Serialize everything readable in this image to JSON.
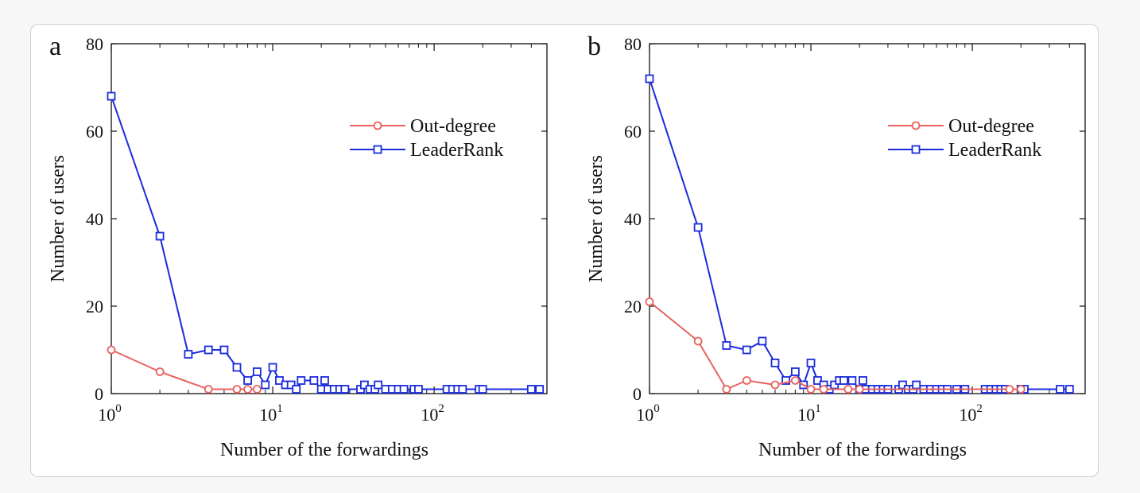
{
  "chart_data": [
    {
      "type": "line",
      "panel_label": "a",
      "xlabel": "Number of the forwardings",
      "ylabel": "Number of users",
      "xscale": "log",
      "xlim": [
        1,
        500
      ],
      "ylim": [
        0,
        80
      ],
      "yticks": [
        0,
        20,
        40,
        60,
        80
      ],
      "xticks": [
        {
          "value": 1,
          "base": "10",
          "exp": "0"
        },
        {
          "value": 10,
          "base": "10",
          "exp": "1"
        },
        {
          "value": 100,
          "base": "10",
          "exp": "2"
        }
      ],
      "legend_position": "top-right",
      "grid": false,
      "series": [
        {
          "name": "Out-degree",
          "color": "#e8625e",
          "marker": "circle",
          "x": [
            1,
            2,
            4,
            6,
            7,
            8
          ],
          "y": [
            10,
            5,
            1,
            1,
            1,
            1
          ]
        },
        {
          "name": "LeaderRank",
          "color": "#1a2bdc",
          "marker": "square",
          "x": [
            1,
            2,
            3,
            4,
            5,
            6,
            7,
            8,
            9,
            10,
            11,
            12,
            13,
            14,
            15,
            18,
            20,
            21,
            22,
            24,
            26,
            28,
            35,
            37,
            40,
            43,
            45,
            50,
            55,
            60,
            65,
            75,
            80,
            120,
            130,
            140,
            150,
            190,
            200,
            400,
            450
          ],
          "y": [
            68,
            36,
            9,
            10,
            10,
            6,
            3,
            5,
            2,
            6,
            3,
            2,
            2,
            1,
            3,
            3,
            1,
            3,
            1,
            1,
            1,
            1,
            1,
            2,
            1,
            1,
            2,
            1,
            1,
            1,
            1,
            1,
            1,
            1,
            1,
            1,
            1,
            1,
            1,
            1,
            1
          ]
        }
      ]
    },
    {
      "type": "line",
      "panel_label": "b",
      "xlabel": "Number of the forwardings",
      "ylabel": "Number of users",
      "xscale": "log",
      "xlim": [
        1,
        500
      ],
      "ylim": [
        0,
        80
      ],
      "yticks": [
        0,
        20,
        40,
        60,
        80
      ],
      "xticks": [
        {
          "value": 1,
          "base": "10",
          "exp": "0"
        },
        {
          "value": 10,
          "base": "10",
          "exp": "1"
        },
        {
          "value": 100,
          "base": "10",
          "exp": "2"
        }
      ],
      "legend_position": "top-right",
      "grid": false,
      "series": [
        {
          "name": "Out-degree",
          "color": "#e8625e",
          "marker": "circle",
          "x": [
            1,
            2,
            3,
            4,
            6,
            8,
            10,
            12,
            17,
            20,
            170,
            200
          ],
          "y": [
            21,
            12,
            1,
            3,
            2,
            3,
            1,
            1,
            1,
            1,
            1,
            1
          ]
        },
        {
          "name": "LeaderRank",
          "color": "#1a2bdc",
          "marker": "square",
          "x": [
            1,
            2,
            3,
            4,
            5,
            6,
            7,
            8,
            9,
            10,
            11,
            12,
            13,
            14,
            15,
            16,
            18,
            20,
            21,
            22,
            24,
            26,
            28,
            30,
            35,
            37,
            40,
            43,
            45,
            50,
            55,
            60,
            65,
            70,
            80,
            90,
            120,
            130,
            140,
            150,
            160,
            200,
            210,
            350,
            400
          ],
          "y": [
            72,
            38,
            11,
            10,
            12,
            7,
            3,
            5,
            2,
            7,
            3,
            2,
            1,
            2,
            3,
            3,
            3,
            1,
            3,
            1,
            1,
            1,
            1,
            1,
            1,
            2,
            1,
            1,
            2,
            1,
            1,
            1,
            1,
            1,
            1,
            1,
            1,
            1,
            1,
            1,
            1,
            1,
            1,
            1,
            1
          ]
        }
      ]
    }
  ]
}
